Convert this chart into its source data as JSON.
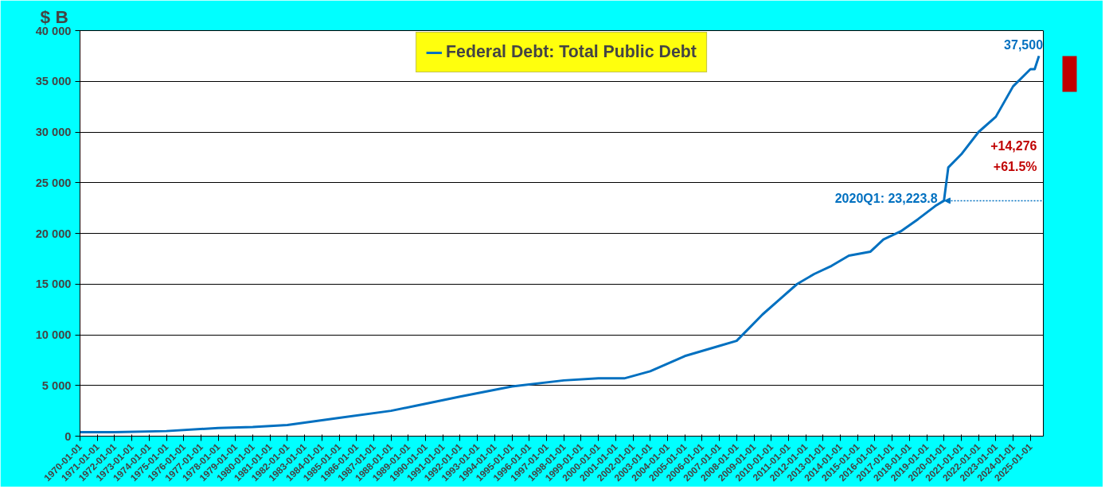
{
  "chart_data": {
    "type": "line",
    "ylabel": "$ B",
    "x": [
      "1970-01",
      "1972-01",
      "1975-01",
      "1978-01",
      "1980-01",
      "1982-01",
      "1985-01",
      "1988-01",
      "1990-01",
      "1992-01",
      "1995-01",
      "1998-01",
      "2000-01",
      "2001-07",
      "2003-01",
      "2005-01",
      "2007-01",
      "2008-01",
      "2008-10",
      "2009-07",
      "2010-07",
      "2011-07",
      "2012-07",
      "2013-07",
      "2014-07",
      "2015-10",
      "2016-07",
      "2017-07",
      "2018-07",
      "2019-07",
      "2020-01",
      "2020-04",
      "2021-01",
      "2022-01",
      "2023-01",
      "2024-01",
      "2025-01",
      "2025-04",
      "2025-07"
    ],
    "series": [
      {
        "name": "Federal Debt: Total Public Debt",
        "color": "#0070c0",
        "values": [
          400,
          400,
          500,
          800,
          900,
          1100,
          1800,
          2500,
          3200,
          3900,
          4900,
          5500,
          5700,
          5700,
          6400,
          7900,
          8900,
          9400,
          10700,
          12000,
          13500,
          15000,
          16000,
          16800,
          17800,
          18200,
          19400,
          20200,
          21400,
          22700,
          23223.8,
          26500,
          27800,
          30000,
          31500,
          34500,
          36200,
          36200,
          37500
        ]
      }
    ],
    "xlim": [
      "1970-01",
      "2025-10"
    ],
    "xticks": [
      "1970-01-01",
      "1971-01-01",
      "1972-01-01",
      "1973-01-01",
      "1974-01-01",
      "1975-01-01",
      "1976-01-01",
      "1977-01-01",
      "1978-01-01",
      "1979-01-01",
      "1980-01-01",
      "1981-01-01",
      "1982-01-01",
      "1983-01-01",
      "1984-01-01",
      "1985-01-01",
      "1986-01-01",
      "1987-01-01",
      "1988-01-01",
      "1989-01-01",
      "1990-01-01",
      "1991-01-01",
      "1992-01-01",
      "1993-01-01",
      "1994-01-01",
      "1995-01-01",
      "1996-01-01",
      "1997-01-01",
      "1998-01-01",
      "1999-01-01",
      "2000-01-01",
      "2001-01-01",
      "2002-01-01",
      "2003-01-01",
      "2004-01-01",
      "2005-01-01",
      "2006-01-01",
      "2007-01-01",
      "2008-01-01",
      "2009-01-01",
      "2010-01-01",
      "2011-01-01",
      "2012-01-01",
      "2013-01-01",
      "2014-01-01",
      "2015-01-01",
      "2016-01-01",
      "2017-01-01",
      "2018-01-01",
      "2019-01-01",
      "2020-01-01",
      "2021-01-01",
      "2022-01-01",
      "2023-01-01",
      "2024-01-01",
      "2025-01-01"
    ],
    "ylim": [
      0,
      40000
    ],
    "yticks": [
      {
        "value": 0,
        "label": "0"
      },
      {
        "value": 5000,
        "label": "5 000"
      },
      {
        "value": 10000,
        "label": "10 000"
      },
      {
        "value": 15000,
        "label": "15 000"
      },
      {
        "value": 20000,
        "label": "20 000"
      },
      {
        "value": 25000,
        "label": "25 000"
      },
      {
        "value": 30000,
        "label": "30 000"
      },
      {
        "value": 35000,
        "label": "35 000"
      },
      {
        "value": 40000,
        "label": "40 000"
      }
    ],
    "grid": "y",
    "legend": "top",
    "annotations": [
      {
        "text": "37,500",
        "x": "2025-07",
        "y": 37500
      },
      {
        "text": "2020Q1: 23,223.8",
        "x": "2020-01",
        "y": 23223.8
      },
      "+14,276",
      "+61.5%"
    ]
  }
}
